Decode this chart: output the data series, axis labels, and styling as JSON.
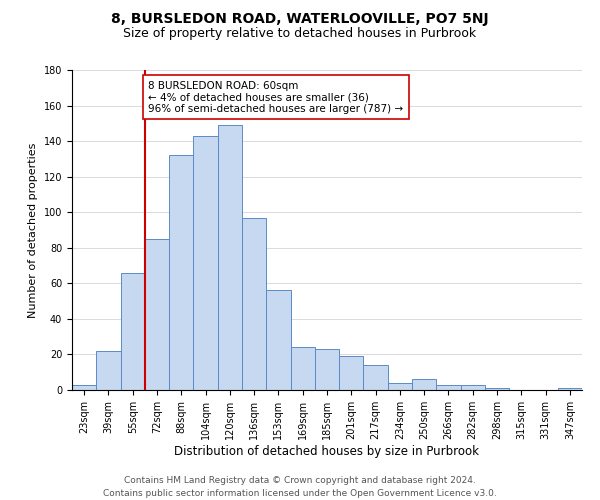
{
  "title": "8, BURSLEDON ROAD, WATERLOOVILLE, PO7 5NJ",
  "subtitle": "Size of property relative to detached houses in Purbrook",
  "xlabel": "Distribution of detached houses by size in Purbrook",
  "ylabel": "Number of detached properties",
  "bin_labels": [
    "23sqm",
    "39sqm",
    "55sqm",
    "72sqm",
    "88sqm",
    "104sqm",
    "120sqm",
    "136sqm",
    "153sqm",
    "169sqm",
    "185sqm",
    "201sqm",
    "217sqm",
    "234sqm",
    "250sqm",
    "266sqm",
    "282sqm",
    "298sqm",
    "315sqm",
    "331sqm",
    "347sqm"
  ],
  "bar_heights": [
    3,
    22,
    66,
    85,
    132,
    143,
    149,
    97,
    56,
    24,
    23,
    19,
    14,
    4,
    6,
    3,
    3,
    1,
    0,
    0,
    1
  ],
  "bar_color": "#c6d9f0",
  "bar_edge_color": "#5a8ac6",
  "vline_bin_index": 2,
  "vline_color": "#cc0000",
  "annotation_title": "8 BURSLEDON ROAD: 60sqm",
  "annotation_line1": "← 4% of detached houses are smaller (36)",
  "annotation_line2": "96% of semi-detached houses are larger (787) →",
  "annotation_box_color": "#ffffff",
  "annotation_box_edge": "#cc0000",
  "ylim": [
    0,
    180
  ],
  "yticks": [
    0,
    20,
    40,
    60,
    80,
    100,
    120,
    140,
    160,
    180
  ],
  "footnote1": "Contains HM Land Registry data © Crown copyright and database right 2024.",
  "footnote2": "Contains public sector information licensed under the Open Government Licence v3.0.",
  "title_fontsize": 10,
  "subtitle_fontsize": 9,
  "xlabel_fontsize": 8.5,
  "ylabel_fontsize": 8,
  "tick_fontsize": 7,
  "annotation_fontsize": 7.5,
  "footnote_fontsize": 6.5
}
